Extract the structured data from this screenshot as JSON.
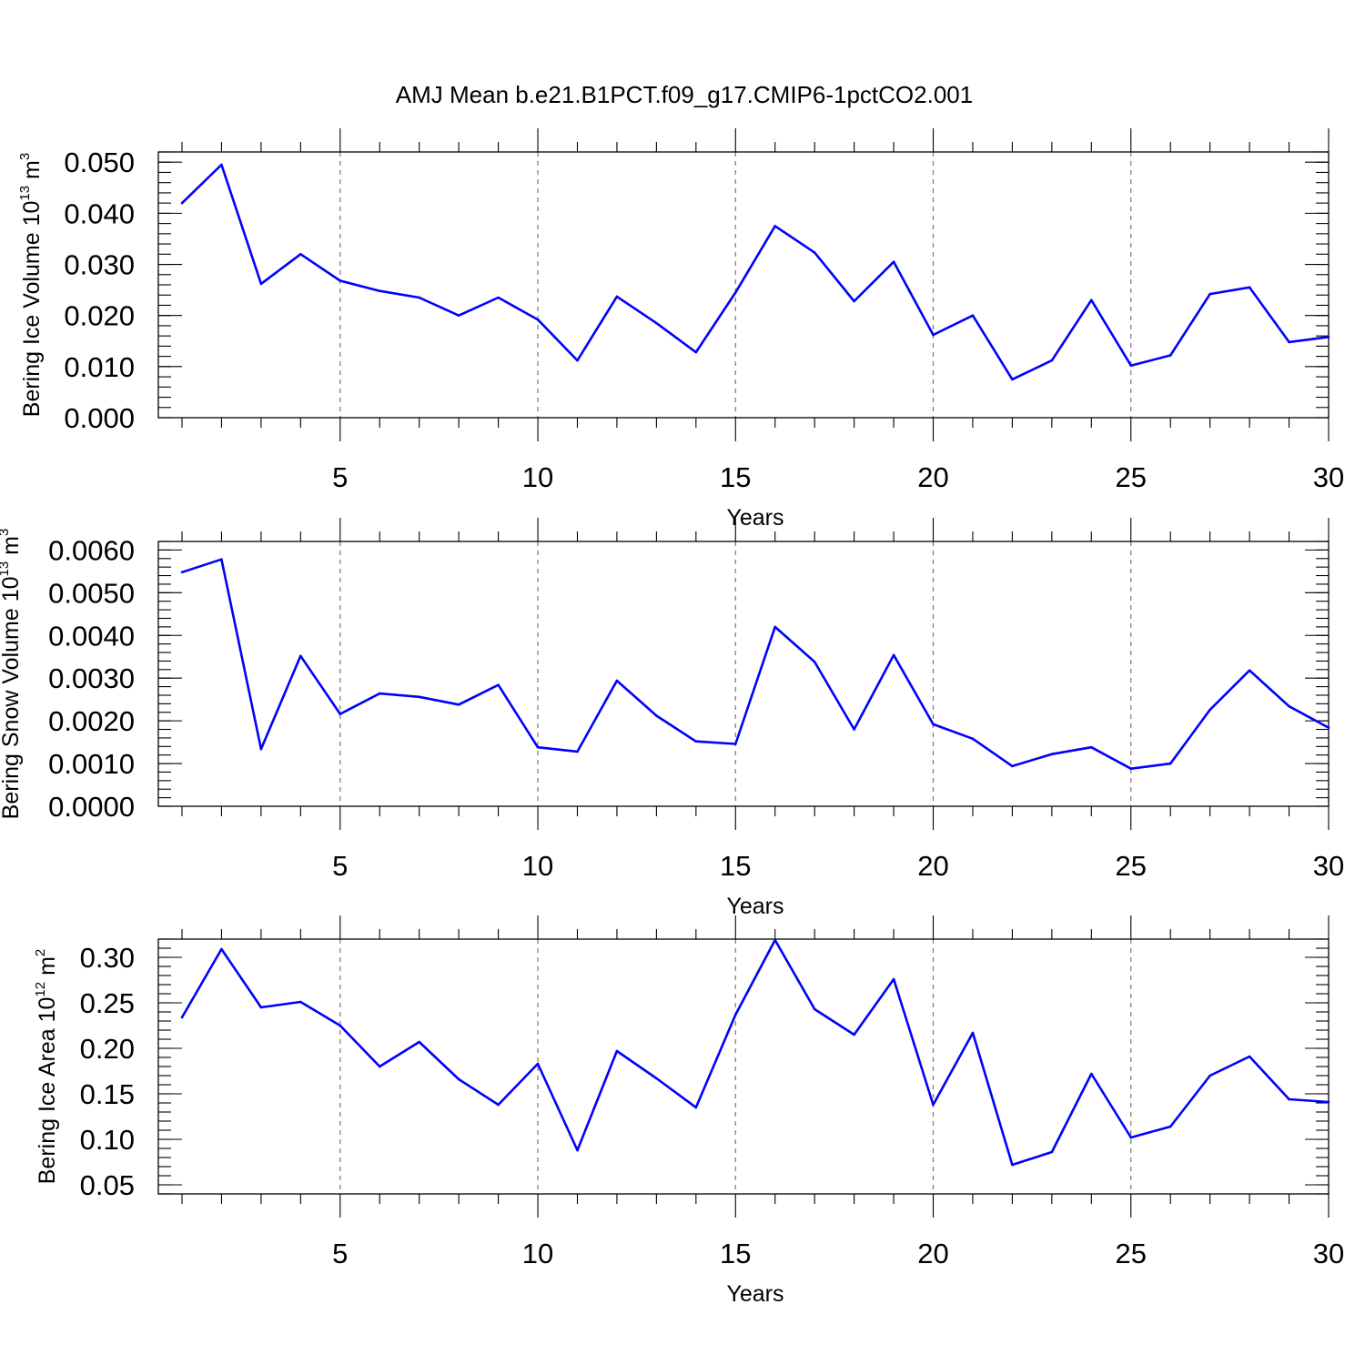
{
  "title": "AMJ Mean b.e21.B1PCT.f09_g17.CMIP6-1pctCO2.001",
  "colors": {
    "line": "#0000ff",
    "grid": "#777777",
    "axis": "#000000"
  },
  "chart_data": [
    {
      "type": "line",
      "ylabel": {
        "base": "Bering Ice Volume 10",
        "exp": "13",
        "unit": " m",
        "unit_exp": "3"
      },
      "xlabel": "Years",
      "xlim": [
        1,
        30
      ],
      "xticks": [
        5,
        10,
        15,
        20,
        25,
        30
      ],
      "xtick_labels": [
        "5",
        "10",
        "15",
        "20",
        "25",
        "30"
      ],
      "ylim": [
        0,
        0.052
      ],
      "yticks": [
        0,
        0.01,
        0.02,
        0.03,
        0.04,
        0.05
      ],
      "ytick_labels": [
        "0.000",
        "0.010",
        "0.020",
        "0.030",
        "0.040",
        "0.050"
      ],
      "yminor_step": 0.002,
      "grid": "vertical dashed at major x ticks",
      "x": [
        1,
        2,
        3,
        4,
        5,
        6,
        7,
        8,
        9,
        10,
        11,
        12,
        13,
        14,
        15,
        16,
        17,
        18,
        19,
        20,
        21,
        22,
        23,
        24,
        25,
        26,
        27,
        28,
        29,
        30
      ],
      "y": [
        0.042,
        0.0495,
        0.0262,
        0.032,
        0.0268,
        0.0248,
        0.0235,
        0.02,
        0.0235,
        0.0192,
        0.0112,
        0.0237,
        0.0185,
        0.0128,
        0.0245,
        0.0375,
        0.0323,
        0.0228,
        0.0305,
        0.0162,
        0.02,
        0.0075,
        0.0112,
        0.023,
        0.0102,
        0.0122,
        0.0242,
        0.0255,
        0.0148,
        0.0158
      ]
    },
    {
      "type": "line",
      "ylabel": {
        "base": "Bering Snow Volume 10",
        "exp": "13",
        "unit": " m",
        "unit_exp": "3"
      },
      "xlabel": "Years",
      "xlim": [
        1,
        30
      ],
      "xticks": [
        5,
        10,
        15,
        20,
        25,
        30
      ],
      "xtick_labels": [
        "5",
        "10",
        "15",
        "20",
        "25",
        "30"
      ],
      "ylim": [
        0,
        0.0062
      ],
      "yticks": [
        0,
        0.001,
        0.002,
        0.003,
        0.004,
        0.005,
        0.006
      ],
      "ytick_labels": [
        "0.0000",
        "0.0010",
        "0.0020",
        "0.0030",
        "0.0040",
        "0.0050",
        "0.0060"
      ],
      "yminor_step": 0.0002,
      "grid": "vertical dashed at major x ticks",
      "x": [
        1,
        2,
        3,
        4,
        5,
        6,
        7,
        8,
        9,
        10,
        11,
        12,
        13,
        14,
        15,
        16,
        17,
        18,
        19,
        20,
        21,
        22,
        23,
        24,
        25,
        26,
        27,
        28,
        29,
        30
      ],
      "y": [
        0.00548,
        0.00578,
        0.00134,
        0.00352,
        0.00216,
        0.00264,
        0.00256,
        0.00238,
        0.00284,
        0.00138,
        0.00128,
        0.00294,
        0.00212,
        0.00152,
        0.00146,
        0.0042,
        0.00338,
        0.0018,
        0.00354,
        0.00192,
        0.00158,
        0.00094,
        0.00122,
        0.00138,
        0.00088,
        0.001,
        0.00226,
        0.00318,
        0.00234,
        0.00184
      ]
    },
    {
      "type": "line",
      "ylabel": {
        "base": "Bering Ice Area 10",
        "exp": "12",
        "unit": " m",
        "unit_exp": "2"
      },
      "xlabel": "Years",
      "xlim": [
        1,
        30
      ],
      "xticks": [
        5,
        10,
        15,
        20,
        25,
        30
      ],
      "xtick_labels": [
        "5",
        "10",
        "15",
        "20",
        "25",
        "30"
      ],
      "ylim": [
        0.04,
        0.32
      ],
      "yticks": [
        0.05,
        0.1,
        0.15,
        0.2,
        0.25,
        0.3
      ],
      "ytick_labels": [
        "0.05",
        "0.10",
        "0.15",
        "0.20",
        "0.25",
        "0.30"
      ],
      "yminor_step": 0.01,
      "grid": "vertical dashed at major x ticks",
      "x": [
        1,
        2,
        3,
        4,
        5,
        6,
        7,
        8,
        9,
        10,
        11,
        12,
        13,
        14,
        15,
        16,
        17,
        18,
        19,
        20,
        21,
        22,
        23,
        24,
        25,
        26,
        27,
        28,
        29,
        30
      ],
      "y": [
        0.234,
        0.309,
        0.245,
        0.251,
        0.225,
        0.18,
        0.207,
        0.166,
        0.138,
        0.183,
        0.088,
        0.197,
        0.167,
        0.135,
        0.237,
        0.319,
        0.243,
        0.215,
        0.276,
        0.138,
        0.217,
        0.072,
        0.086,
        0.172,
        0.102,
        0.114,
        0.17,
        0.191,
        0.144,
        0.141
      ]
    }
  ]
}
